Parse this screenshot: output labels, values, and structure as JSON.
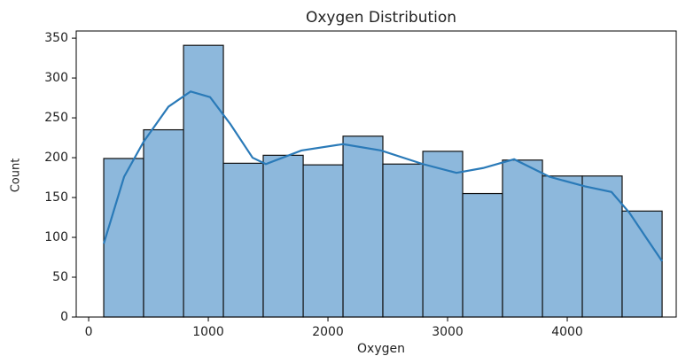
{
  "chart_data": {
    "type": "histogram",
    "title": "Oxygen Distribution",
    "x_label": "Oxygen",
    "y_label": "Count",
    "bins": [
      126,
      459,
      793,
      1126,
      1459,
      1793,
      2126,
      2459,
      2793,
      3126,
      3459,
      3793,
      4126,
      4459,
      4793
    ],
    "values": [
      199,
      235,
      341,
      193,
      203,
      191,
      227,
      192,
      208,
      155,
      197,
      177,
      177,
      133
    ],
    "color": "#8db8dc",
    "edge_color": "#111111",
    "kde": {
      "color": "#2a7ab8",
      "x": [
        126,
        296,
        459,
        667,
        852,
        1015,
        1185,
        1370,
        1481,
        1778,
        2126,
        2444,
        2793,
        3074,
        3296,
        3556,
        3852,
        4148,
        4370,
        4519,
        4667,
        4793
      ],
      "values": [
        92,
        176,
        220,
        264,
        283,
        276,
        242,
        200,
        192,
        209,
        217,
        209,
        192,
        181,
        187,
        198,
        176,
        164,
        157,
        131,
        98,
        70
      ]
    },
    "xlim": [
      -104,
      4911
    ],
    "ylim": [
      0,
      359
    ],
    "xticks": [
      0,
      1000,
      2000,
      3000,
      4000
    ],
    "yticks": [
      0,
      50,
      100,
      150,
      200,
      250,
      300,
      350
    ]
  }
}
